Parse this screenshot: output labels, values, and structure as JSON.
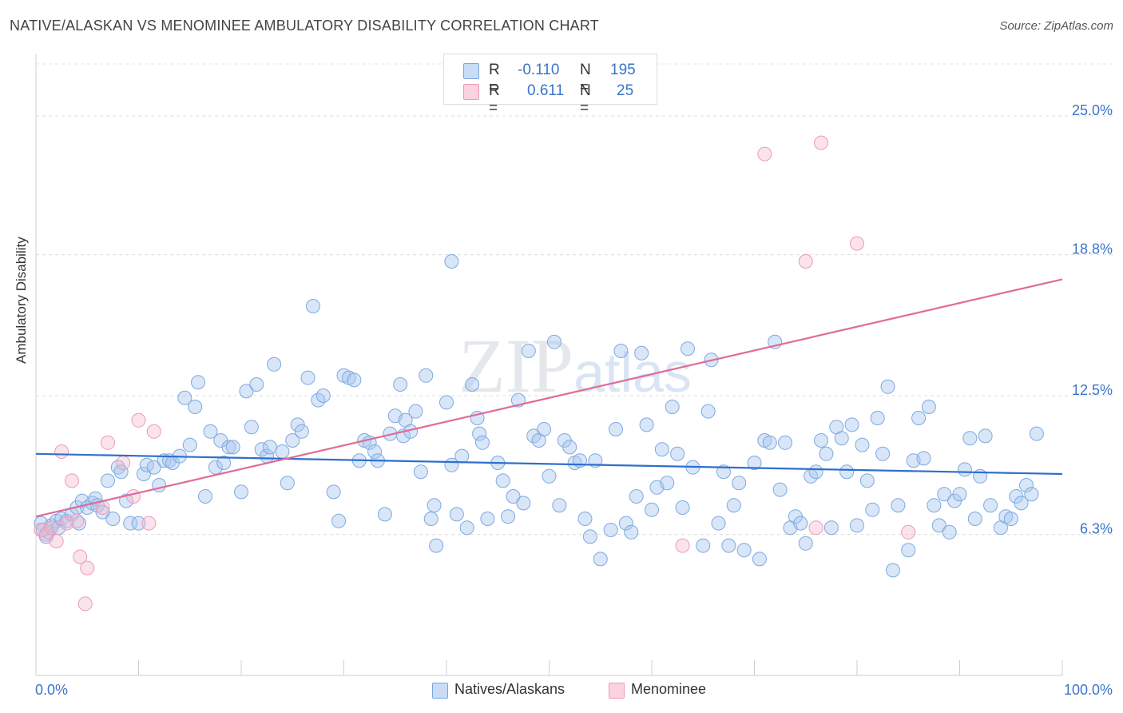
{
  "title": "NATIVE/ALASKAN VS MENOMINEE AMBULATORY DISABILITY CORRELATION CHART",
  "source": "Source: ZipAtlas.com",
  "legend_top": [
    {
      "r_label": "R =",
      "r_value": "-0.110",
      "n_label": "N =",
      "n_value": "195",
      "color": "#a9c8f0"
    },
    {
      "r_label": "R =",
      "r_value": "0.611",
      "n_label": "N =",
      "n_value": "25",
      "color": "#f6b8cc"
    }
  ],
  "legend_bottom": [
    {
      "label": "Natives/Alaskans",
      "color": "#a9c8f0"
    },
    {
      "label": "Menominee",
      "color": "#f6b8cc"
    }
  ],
  "watermark": "ZIPatlas",
  "chart_data": {
    "type": "scatter",
    "title": "NATIVE/ALASKAN VS MENOMINEE AMBULATORY DISABILITY CORRELATION CHART",
    "xlabel": "",
    "ylabel": "Ambulatory Disability",
    "xlim": [
      0,
      100
    ],
    "ylim": [
      0,
      27.5
    ],
    "x_tick_labels": [
      "0.0%",
      "100.0%"
    ],
    "y_ticks": [
      6.3,
      12.5,
      18.8,
      25.0
    ],
    "y_tick_labels": [
      "6.3%",
      "12.5%",
      "18.8%",
      "25.0%"
    ],
    "grid": "horizontal dashed",
    "legend_position": "top-center",
    "series": [
      {
        "name": "Natives/Alaskans",
        "color": "#a9c8f0",
        "line_color": "#2f6fcc",
        "trend": {
          "x": [
            0,
            100
          ],
          "y": [
            9.9,
            9.0
          ]
        },
        "points": [
          [
            0.5,
            6.8
          ],
          [
            0.7,
            6.5
          ],
          [
            1,
            6.2
          ],
          [
            1.2,
            6.4
          ],
          [
            1.5,
            6.7
          ],
          [
            2,
            6.9
          ],
          [
            2.2,
            6.6
          ],
          [
            2.5,
            7
          ],
          [
            3,
            6.9
          ],
          [
            3.5,
            7.2
          ],
          [
            4,
            7.5
          ],
          [
            4.2,
            6.8
          ],
          [
            4.5,
            7.8
          ],
          [
            5,
            7.5
          ],
          [
            5.5,
            7.7
          ],
          [
            5.8,
            7.9
          ],
          [
            6,
            7.6
          ],
          [
            6.5,
            7.3
          ],
          [
            7,
            8.7
          ],
          [
            7.5,
            7
          ],
          [
            8,
            9.3
          ],
          [
            8.3,
            9.1
          ],
          [
            8.8,
            7.8
          ],
          [
            9.2,
            6.8
          ],
          [
            10,
            6.8
          ],
          [
            10.5,
            9
          ],
          [
            10.8,
            9.4
          ],
          [
            11.5,
            9.3
          ],
          [
            12,
            8.5
          ],
          [
            12.5,
            9.6
          ],
          [
            13,
            9.6
          ],
          [
            13.3,
            9.5
          ],
          [
            14,
            9.8
          ],
          [
            14.5,
            12.4
          ],
          [
            15,
            10.3
          ],
          [
            15.5,
            12
          ],
          [
            15.8,
            13.1
          ],
          [
            16.5,
            8
          ],
          [
            17,
            10.9
          ],
          [
            17.5,
            9.3
          ],
          [
            18,
            10.5
          ],
          [
            18.3,
            9.5
          ],
          [
            18.8,
            10.2
          ],
          [
            19.2,
            10.2
          ],
          [
            20,
            8.2
          ],
          [
            20.5,
            12.7
          ],
          [
            21,
            11.1
          ],
          [
            21.5,
            13
          ],
          [
            22,
            10.1
          ],
          [
            22.5,
            9.8
          ],
          [
            22.8,
            10.2
          ],
          [
            23.2,
            13.9
          ],
          [
            24,
            10
          ],
          [
            24.5,
            8.6
          ],
          [
            25,
            10.5
          ],
          [
            25.5,
            11.2
          ],
          [
            25.9,
            10.9
          ],
          [
            26.5,
            13.3
          ],
          [
            27,
            16.5
          ],
          [
            27.5,
            12.3
          ],
          [
            28,
            12.5
          ],
          [
            29,
            8.2
          ],
          [
            29.5,
            6.9
          ],
          [
            30,
            13.4
          ],
          [
            30.5,
            13.3
          ],
          [
            31,
            13.2
          ],
          [
            31.5,
            9.6
          ],
          [
            32,
            10.5
          ],
          [
            32.5,
            10.4
          ],
          [
            33,
            10
          ],
          [
            33.3,
            9.6
          ],
          [
            34,
            7.2
          ],
          [
            34.5,
            10.8
          ],
          [
            35,
            11.6
          ],
          [
            35.5,
            13
          ],
          [
            35.8,
            10.7
          ],
          [
            36,
            11.4
          ],
          [
            37,
            11.8
          ],
          [
            36.5,
            10.9
          ],
          [
            37.5,
            9.1
          ],
          [
            38,
            13.4
          ],
          [
            38.5,
            7
          ],
          [
            38.8,
            7.6
          ],
          [
            39,
            5.8
          ],
          [
            40,
            12.2
          ],
          [
            40.5,
            9.4
          ],
          [
            41,
            7.2
          ],
          [
            41.5,
            9.8
          ],
          [
            42,
            6.6
          ],
          [
            42.5,
            13
          ],
          [
            43,
            11.5
          ],
          [
            43.2,
            10.8
          ],
          [
            43.5,
            10.4
          ],
          [
            44,
            7
          ],
          [
            45,
            9.5
          ],
          [
            45.5,
            8.7
          ],
          [
            46,
            7.1
          ],
          [
            46.5,
            8
          ],
          [
            47,
            12.3
          ],
          [
            47.5,
            7.7
          ],
          [
            48,
            14.5
          ],
          [
            48.5,
            10.7
          ],
          [
            49,
            10.5
          ],
          [
            49.5,
            11
          ],
          [
            50,
            8.9
          ],
          [
            50.5,
            14.9
          ],
          [
            51,
            7.6
          ],
          [
            51.5,
            10.5
          ],
          [
            52,
            10.2
          ],
          [
            52.5,
            9.5
          ],
          [
            53,
            9.6
          ],
          [
            53.5,
            7
          ],
          [
            54,
            6.2
          ],
          [
            54.5,
            9.6
          ],
          [
            55,
            5.2
          ],
          [
            56,
            6.5
          ],
          [
            56.5,
            11
          ],
          [
            57,
            14.5
          ],
          [
            57.5,
            6.8
          ],
          [
            58,
            6.4
          ],
          [
            58.5,
            8
          ],
          [
            59,
            14.4
          ],
          [
            59.5,
            11.2
          ],
          [
            60,
            7.4
          ],
          [
            60.5,
            8.4
          ],
          [
            61,
            10.1
          ],
          [
            61.5,
            8.6
          ],
          [
            62,
            12
          ],
          [
            62.5,
            9.9
          ],
          [
            63,
            7.5
          ],
          [
            63.5,
            14.6
          ],
          [
            64,
            9.3
          ],
          [
            65,
            5.8
          ],
          [
            65.5,
            11.8
          ],
          [
            65.8,
            14.1
          ],
          [
            66.5,
            6.8
          ],
          [
            67,
            9.1
          ],
          [
            67.5,
            5.8
          ],
          [
            68,
            7.6
          ],
          [
            68.5,
            8.6
          ],
          [
            69,
            5.6
          ],
          [
            70,
            9.5
          ],
          [
            70.5,
            5.2
          ],
          [
            71,
            10.5
          ],
          [
            71.5,
            10.4
          ],
          [
            72,
            14.9
          ],
          [
            72.5,
            8.3
          ],
          [
            73,
            10.4
          ],
          [
            73.5,
            6.6
          ],
          [
            74,
            7.1
          ],
          [
            74.5,
            6.8
          ],
          [
            75,
            5.9
          ],
          [
            75.5,
            8.9
          ],
          [
            76,
            9.1
          ],
          [
            76.5,
            10.5
          ],
          [
            77,
            9.9
          ],
          [
            77.5,
            6.6
          ],
          [
            78,
            11.1
          ],
          [
            78.5,
            10.6
          ],
          [
            79,
            9.1
          ],
          [
            79.5,
            11.2
          ],
          [
            80,
            6.7
          ],
          [
            80.5,
            10.3
          ],
          [
            81,
            8.7
          ],
          [
            81.5,
            7.4
          ],
          [
            82,
            11.5
          ],
          [
            82.5,
            9.9
          ],
          [
            83,
            12.9
          ],
          [
            83.5,
            4.7
          ],
          [
            84,
            7.6
          ],
          [
            85,
            5.6
          ],
          [
            85.5,
            9.6
          ],
          [
            86,
            11.5
          ],
          [
            86.5,
            9.7
          ],
          [
            87,
            12
          ],
          [
            87.5,
            7.6
          ],
          [
            88,
            6.7
          ],
          [
            88.5,
            8.1
          ],
          [
            89,
            6.4
          ],
          [
            89.5,
            7.8
          ],
          [
            90,
            8.1
          ],
          [
            90.5,
            9.2
          ],
          [
            91,
            10.6
          ],
          [
            91.5,
            7
          ],
          [
            92,
            8.9
          ],
          [
            92.5,
            10.7
          ],
          [
            93,
            7.6
          ],
          [
            94,
            6.6
          ],
          [
            94.5,
            7.1
          ],
          [
            95,
            7
          ],
          [
            95.5,
            8
          ],
          [
            96,
            7.7
          ],
          [
            96.5,
            8.5
          ],
          [
            97,
            8.1
          ],
          [
            97.5,
            10.8
          ],
          [
            40.5,
            18.5
          ]
        ]
      },
      {
        "name": "Menominee",
        "color": "#f6b8cc",
        "line_color": "#e06b96",
        "trend": {
          "x": [
            0,
            100
          ],
          "y": [
            7.1,
            17.7
          ]
        },
        "points": [
          [
            0.5,
            6.5
          ],
          [
            1,
            6.3
          ],
          [
            1.5,
            6.6
          ],
          [
            2,
            6
          ],
          [
            2.5,
            10
          ],
          [
            3,
            6.8
          ],
          [
            3.5,
            8.7
          ],
          [
            4,
            6.9
          ],
          [
            4.3,
            5.3
          ],
          [
            4.8,
            3.2
          ],
          [
            5,
            4.8
          ],
          [
            6.5,
            7.5
          ],
          [
            7,
            10.4
          ],
          [
            8.5,
            9.5
          ],
          [
            9.5,
            8
          ],
          [
            10,
            11.4
          ],
          [
            11,
            6.8
          ],
          [
            11.5,
            10.9
          ],
          [
            63,
            5.8
          ],
          [
            71,
            23.3
          ],
          [
            75,
            18.5
          ],
          [
            76,
            6.6
          ],
          [
            76.5,
            23.8
          ],
          [
            80,
            19.3
          ],
          [
            85,
            6.4
          ]
        ]
      }
    ]
  }
}
